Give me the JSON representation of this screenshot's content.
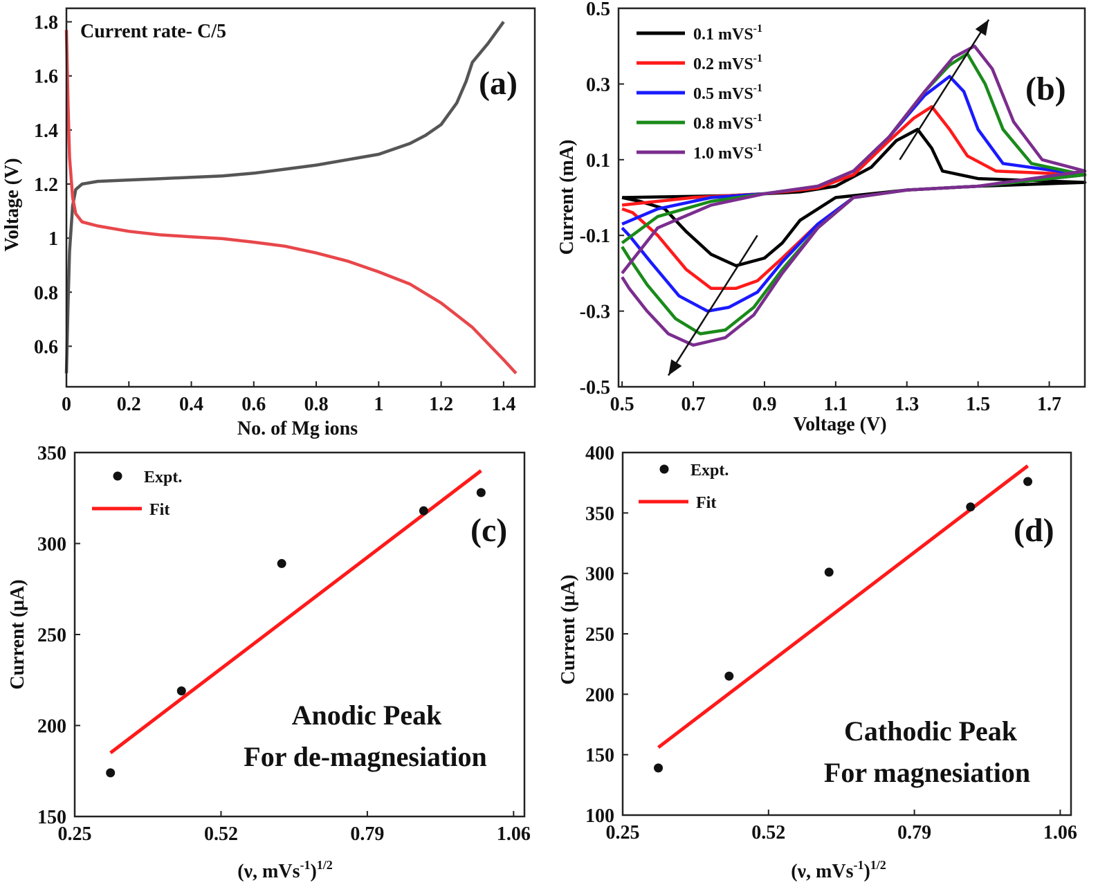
{
  "chart_data": [
    {
      "panel": "(a)",
      "type": "line",
      "xlabel": "No. of Mg ions",
      "ylabel": "Voltage (V)",
      "xlim": [
        0,
        1.5
      ],
      "ylim": [
        0.45,
        1.85
      ],
      "xticks": [
        0,
        0.2,
        0.4,
        0.6,
        0.8,
        1,
        1.2,
        1.4
      ],
      "xtick_labels": [
        "0",
        "0.2",
        "0.4",
        "0.6",
        "0.8",
        "1",
        "1.2",
        "1.4"
      ],
      "yticks": [
        0.6,
        0.8,
        1.0,
        1.2,
        1.4,
        1.6,
        1.8
      ],
      "ytick_labels": [
        "0.6",
        "0.8",
        "1",
        "1.2",
        "1.4",
        "1.6",
        "1.8"
      ],
      "annotation": "Current rate- C/5",
      "series": [
        {
          "color": "#555555",
          "x": [
            0.0,
            0.005,
            0.01,
            0.02,
            0.03,
            0.05,
            0.1,
            0.2,
            0.3,
            0.4,
            0.5,
            0.6,
            0.7,
            0.8,
            0.9,
            1.0,
            1.1,
            1.15,
            1.2,
            1.25,
            1.28,
            1.3,
            1.35,
            1.4
          ],
          "y": [
            0.5,
            0.75,
            0.95,
            1.12,
            1.18,
            1.2,
            1.21,
            1.215,
            1.22,
            1.225,
            1.23,
            1.24,
            1.255,
            1.27,
            1.29,
            1.31,
            1.35,
            1.38,
            1.42,
            1.5,
            1.58,
            1.65,
            1.72,
            1.8
          ]
        },
        {
          "color": "#e8474b",
          "x": [
            0.0,
            0.005,
            0.01,
            0.02,
            0.03,
            0.05,
            0.1,
            0.2,
            0.3,
            0.4,
            0.5,
            0.6,
            0.7,
            0.8,
            0.9,
            1.0,
            1.1,
            1.2,
            1.3,
            1.35,
            1.4,
            1.44
          ],
          "y": [
            1.77,
            1.5,
            1.3,
            1.15,
            1.09,
            1.06,
            1.045,
            1.025,
            1.012,
            1.005,
            0.998,
            0.985,
            0.97,
            0.945,
            0.915,
            0.875,
            0.83,
            0.76,
            0.67,
            0.61,
            0.55,
            0.5
          ]
        }
      ]
    },
    {
      "panel": "(b)",
      "type": "line",
      "xlabel": "Voltage (V)",
      "ylabel": "Current (mA)",
      "xlim": [
        0.49,
        1.8
      ],
      "ylim": [
        -0.5,
        0.5
      ],
      "xticks": [
        0.5,
        0.7,
        0.9,
        1.1,
        1.3,
        1.5,
        1.7
      ],
      "xtick_labels": [
        "0.5",
        "0.7",
        "0.9",
        "1.1",
        "1.3",
        "1.5",
        "1.7"
      ],
      "yticks": [
        -0.5,
        -0.3,
        -0.1,
        0.1,
        0.3,
        0.5
      ],
      "ytick_labels": [
        "-0.5",
        "-0.3",
        "-0.1",
        "0.1",
        "0.3",
        "0.5"
      ],
      "legend_position": "top-left",
      "series": [
        {
          "name": "0.1 mVS",
          "name_sup": "-1",
          "color": "#000000",
          "anodic": [
            [
              0.5,
              0.0
            ],
            [
              0.8,
              0.005
            ],
            [
              1.0,
              0.015
            ],
            [
              1.1,
              0.03
            ],
            [
              1.2,
              0.08
            ],
            [
              1.27,
              0.15
            ],
            [
              1.33,
              0.18
            ],
            [
              1.37,
              0.13
            ],
            [
              1.4,
              0.07
            ],
            [
              1.5,
              0.05
            ],
            [
              1.8,
              0.04
            ]
          ],
          "cathodic": [
            [
              1.8,
              0.04
            ],
            [
              1.5,
              0.03
            ],
            [
              1.3,
              0.02
            ],
            [
              1.1,
              0.0
            ],
            [
              1.0,
              -0.06
            ],
            [
              0.95,
              -0.12
            ],
            [
              0.9,
              -0.16
            ],
            [
              0.82,
              -0.18
            ],
            [
              0.75,
              -0.15
            ],
            [
              0.68,
              -0.09
            ],
            [
              0.62,
              -0.03
            ],
            [
              0.55,
              -0.01
            ],
            [
              0.5,
              0.0
            ]
          ]
        },
        {
          "name": "0.2 mVS",
          "name_sup": "-1",
          "color": "#ff1a1a",
          "anodic": [
            [
              0.5,
              -0.02
            ],
            [
              0.7,
              0.0
            ],
            [
              0.9,
              0.01
            ],
            [
              1.05,
              0.025
            ],
            [
              1.15,
              0.06
            ],
            [
              1.25,
              0.15
            ],
            [
              1.32,
              0.21
            ],
            [
              1.37,
              0.24
            ],
            [
              1.42,
              0.18
            ],
            [
              1.47,
              0.11
            ],
            [
              1.55,
              0.07
            ],
            [
              1.8,
              0.06
            ]
          ],
          "cathodic": [
            [
              1.8,
              0.06
            ],
            [
              1.5,
              0.03
            ],
            [
              1.3,
              0.02
            ],
            [
              1.15,
              0.0
            ],
            [
              1.05,
              -0.07
            ],
            [
              0.95,
              -0.16
            ],
            [
              0.88,
              -0.22
            ],
            [
              0.82,
              -0.24
            ],
            [
              0.75,
              -0.24
            ],
            [
              0.68,
              -0.19
            ],
            [
              0.6,
              -0.1
            ],
            [
              0.53,
              -0.04
            ],
            [
              0.5,
              -0.03
            ]
          ]
        },
        {
          "name": "0.5 mVS",
          "name_sup": "-1",
          "color": "#1a1aff",
          "anodic": [
            [
              0.5,
              -0.07
            ],
            [
              0.6,
              -0.03
            ],
            [
              0.75,
              0.0
            ],
            [
              0.9,
              0.01
            ],
            [
              1.05,
              0.03
            ],
            [
              1.15,
              0.07
            ],
            [
              1.25,
              0.16
            ],
            [
              1.35,
              0.27
            ],
            [
              1.42,
              0.32
            ],
            [
              1.46,
              0.28
            ],
            [
              1.5,
              0.18
            ],
            [
              1.57,
              0.09
            ],
            [
              1.8,
              0.06
            ]
          ],
          "cathodic": [
            [
              1.8,
              0.06
            ],
            [
              1.5,
              0.03
            ],
            [
              1.3,
              0.02
            ],
            [
              1.15,
              0.0
            ],
            [
              1.05,
              -0.07
            ],
            [
              0.95,
              -0.17
            ],
            [
              0.88,
              -0.25
            ],
            [
              0.8,
              -0.29
            ],
            [
              0.74,
              -0.3
            ],
            [
              0.66,
              -0.26
            ],
            [
              0.58,
              -0.17
            ],
            [
              0.52,
              -0.1
            ],
            [
              0.5,
              -0.08
            ]
          ]
        },
        {
          "name": "0.8 mVS",
          "name_sup": "-1",
          "color": "#1a8a1a",
          "anodic": [
            [
              0.5,
              -0.12
            ],
            [
              0.6,
              -0.05
            ],
            [
              0.75,
              -0.01
            ],
            [
              0.9,
              0.01
            ],
            [
              1.05,
              0.03
            ],
            [
              1.15,
              0.07
            ],
            [
              1.25,
              0.16
            ],
            [
              1.35,
              0.28
            ],
            [
              1.42,
              0.35
            ],
            [
              1.47,
              0.38
            ],
            [
              1.52,
              0.3
            ],
            [
              1.57,
              0.18
            ],
            [
              1.65,
              0.09
            ],
            [
              1.8,
              0.06
            ]
          ],
          "cathodic": [
            [
              1.8,
              0.06
            ],
            [
              1.5,
              0.03
            ],
            [
              1.3,
              0.02
            ],
            [
              1.15,
              0.0
            ],
            [
              1.05,
              -0.08
            ],
            [
              0.95,
              -0.19
            ],
            [
              0.87,
              -0.29
            ],
            [
              0.79,
              -0.35
            ],
            [
              0.72,
              -0.36
            ],
            [
              0.65,
              -0.32
            ],
            [
              0.57,
              -0.23
            ],
            [
              0.52,
              -0.16
            ],
            [
              0.5,
              -0.13
            ]
          ]
        },
        {
          "name": "1.0 mVS",
          "name_sup": "-1",
          "color": "#7b2d8e",
          "anodic": [
            [
              0.5,
              -0.2
            ],
            [
              0.6,
              -0.08
            ],
            [
              0.75,
              -0.02
            ],
            [
              0.9,
              0.01
            ],
            [
              1.05,
              0.03
            ],
            [
              1.15,
              0.07
            ],
            [
              1.25,
              0.16
            ],
            [
              1.35,
              0.28
            ],
            [
              1.43,
              0.37
            ],
            [
              1.49,
              0.4
            ],
            [
              1.54,
              0.34
            ],
            [
              1.6,
              0.2
            ],
            [
              1.68,
              0.1
            ],
            [
              1.8,
              0.07
            ]
          ],
          "cathodic": [
            [
              1.8,
              0.07
            ],
            [
              1.5,
              0.03
            ],
            [
              1.3,
              0.02
            ],
            [
              1.15,
              0.0
            ],
            [
              1.05,
              -0.08
            ],
            [
              0.95,
              -0.2
            ],
            [
              0.87,
              -0.31
            ],
            [
              0.79,
              -0.37
            ],
            [
              0.7,
              -0.39
            ],
            [
              0.63,
              -0.36
            ],
            [
              0.57,
              -0.3
            ],
            [
              0.52,
              -0.24
            ],
            [
              0.5,
              -0.21
            ]
          ]
        }
      ],
      "arrows": [
        {
          "from": [
            1.28,
            0.1
          ],
          "to": [
            1.53,
            0.47
          ]
        },
        {
          "from": [
            0.88,
            -0.1
          ],
          "to": [
            0.63,
            -0.47
          ]
        }
      ]
    },
    {
      "panel": "(c)",
      "type": "scatter",
      "xlabel": "(ν, mVs",
      "xlabel_sup1": "-1",
      "xlabel_tail": ")",
      "xlabel_sup2": "1/2",
      "ylabel": "Current (μA)",
      "xlim": [
        0.25,
        1.08
      ],
      "ylim": [
        150,
        350
      ],
      "xticks": [
        0.25,
        0.52,
        0.79,
        1.06
      ],
      "xtick_labels": [
        "0.25",
        "0.52",
        "0.79",
        "1.06"
      ],
      "yticks": [
        150,
        200,
        250,
        300,
        350
      ],
      "ytick_labels": [
        "150",
        "200",
        "250",
        "300",
        "350"
      ],
      "legend": {
        "expt": "Expt.",
        "fit": "Fit"
      },
      "annotation_lines": [
        "Anodic Peak",
        "For de-magnesiation"
      ],
      "points": {
        "x": [
          0.316,
          0.447,
          0.632,
          0.894,
          1.0
        ],
        "y": [
          174,
          219,
          289,
          318,
          328
        ]
      },
      "fit": {
        "x": [
          0.316,
          1.0
        ],
        "y": [
          185,
          340
        ]
      }
    },
    {
      "panel": "(d)",
      "type": "scatter",
      "xlabel": "(ν, mVs",
      "xlabel_sup1": "-1",
      "xlabel_tail": ")",
      "xlabel_sup2": "1/2",
      "ylabel": "Current (μA)",
      "xlim": [
        0.25,
        1.08
      ],
      "ylim": [
        100,
        400
      ],
      "xticks": [
        0.25,
        0.52,
        0.79,
        1.06
      ],
      "xtick_labels": [
        "0.25",
        "0.52",
        "0.79",
        "1.06"
      ],
      "yticks": [
        100,
        150,
        200,
        250,
        300,
        350,
        400
      ],
      "ytick_labels": [
        "100",
        "150",
        "200",
        "250",
        "300",
        "350",
        "400"
      ],
      "legend": {
        "expt": "Expt.",
        "fit": "Fit"
      },
      "annotation_lines": [
        "Cathodic Peak",
        "For magnesiation"
      ],
      "points": {
        "x": [
          0.316,
          0.447,
          0.632,
          0.894,
          1.0
        ],
        "y": [
          139,
          215,
          301,
          355,
          376
        ]
      },
      "fit": {
        "x": [
          0.316,
          1.0
        ],
        "y": [
          156,
          389
        ]
      }
    }
  ]
}
